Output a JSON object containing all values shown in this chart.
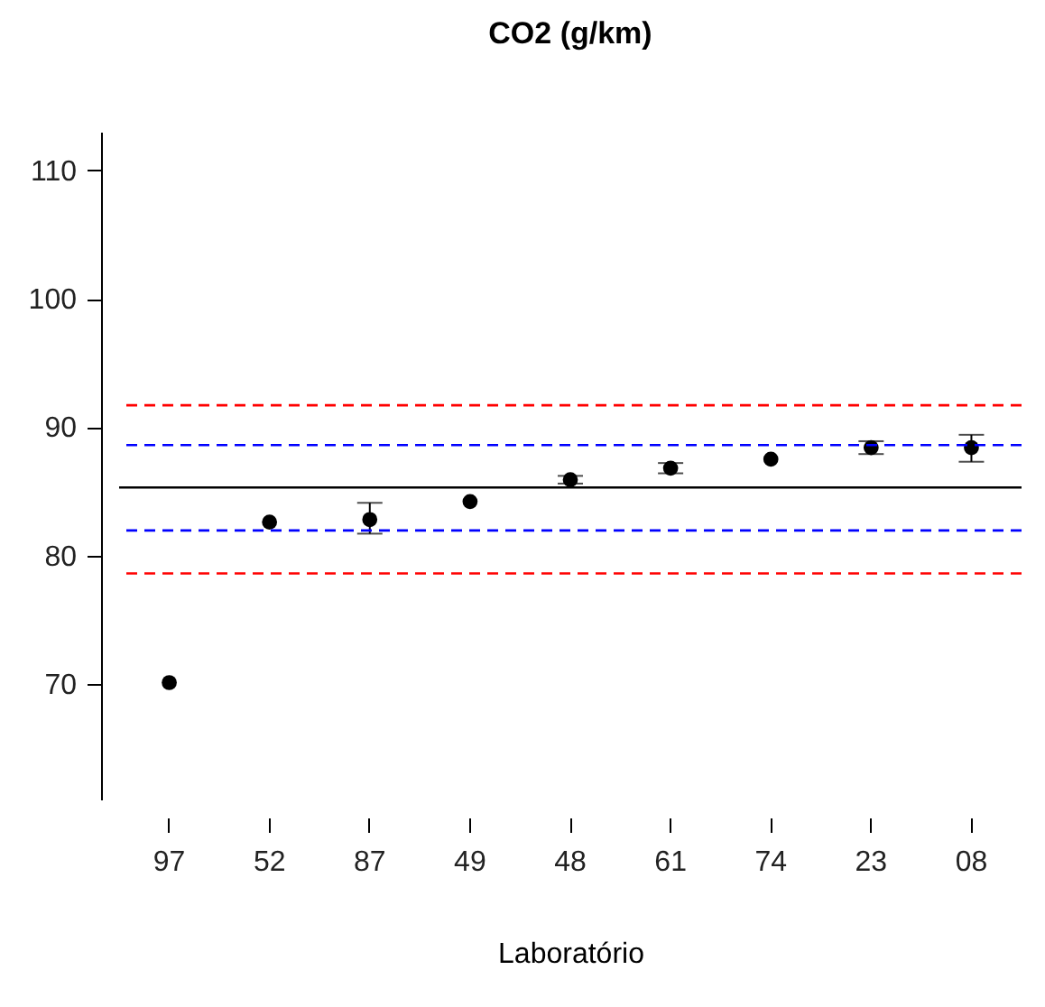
{
  "chart_data": {
    "type": "scatter",
    "title": "CO2 (g/km)",
    "xlabel": "Laboratório",
    "categories": [
      "97",
      "52",
      "87",
      "49",
      "48",
      "61",
      "74",
      "23",
      "08"
    ],
    "series": [
      {
        "color": "#000000",
        "values": [
          70.1,
          82.6,
          82.8,
          84.2,
          85.9,
          86.8,
          87.5,
          88.4,
          88.4
        ],
        "errors": [
          null,
          null,
          [
            81.7,
            84.1
          ],
          null,
          [
            85.6,
            86.2
          ],
          [
            86.4,
            87.2
          ],
          null,
          [
            87.9,
            88.9
          ],
          [
            87.3,
            89.4
          ]
        ]
      }
    ],
    "ylim": [
      61,
      113
    ],
    "yticks": [
      70,
      80,
      90,
      100,
      110
    ],
    "marker": "circle",
    "grid": false,
    "ref_lines": [
      {
        "axis": "y",
        "value": 91.7,
        "color": "#ff0000",
        "line_style": "dashed"
      },
      {
        "axis": "y",
        "value": 88.6,
        "color": "#0000ff",
        "line_style": "dashed"
      },
      {
        "axis": "y",
        "value": 85.3,
        "color": "#000000",
        "line_style": "solid"
      },
      {
        "axis": "y",
        "value": 81.95,
        "color": "#0000ff",
        "line_style": "dashed"
      },
      {
        "axis": "y",
        "value": 78.6,
        "color": "#ff0000",
        "line_style": "dashed"
      }
    ]
  }
}
